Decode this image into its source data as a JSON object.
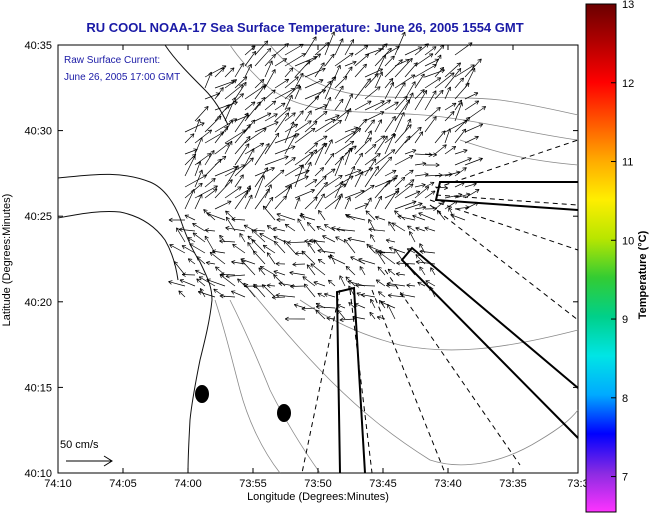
{
  "title": "RU COOL  NOAA-17  Sea Surface Temperature:  June 26, 2005 1554 GMT",
  "inset": {
    "line1": "Raw Surface Current:",
    "line2": "June 26, 2005 17:00 GMT"
  },
  "scale_label": "50 cm/s",
  "xaxis": {
    "label": "Longitude (Degrees:Minutes)",
    "ticks": [
      "74:10",
      "74:05",
      "74:00",
      "73:55",
      "73:50",
      "73:45",
      "73:40",
      "73:35",
      "73:3"
    ]
  },
  "yaxis": {
    "label": "Latitude (Degrees:Minutes)",
    "ticks": [
      "40:35",
      "40:30",
      "40:25",
      "40:20",
      "40:15",
      "40:10"
    ]
  },
  "colorbar": {
    "label": "Temperature (°C)",
    "ticks": [
      "13",
      "12",
      "11",
      "10",
      "9",
      "8",
      "7"
    ],
    "stops": [
      "#ff33ff",
      "#8a2be2",
      "#0000ff",
      "#00aaff",
      "#00e5e5",
      "#00d08a",
      "#33cc33",
      "#b8e600",
      "#ffee00",
      "#ffaa00",
      "#ff5500",
      "#ff0000",
      "#b30000",
      "#6b0000"
    ]
  }
}
